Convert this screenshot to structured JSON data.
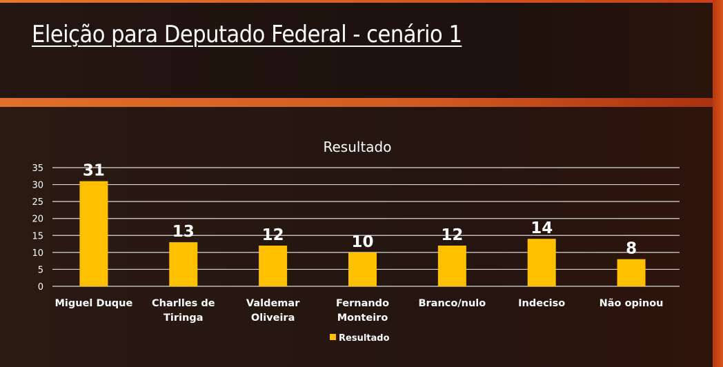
{
  "slide": {
    "title": "Eleição para Deputado Federal - cenário 1"
  },
  "colors": {
    "bar": "#ffc000",
    "grid": "#d9d9d9",
    "text": "#ffffff"
  },
  "chart_data": {
    "type": "bar",
    "title": "Resultado",
    "categories": [
      "Miguel Duque",
      "Charlles de Tiringa",
      "Valdemar Oliveira",
      "Fernando Monteiro",
      "Branco/nulo",
      "Indeciso",
      "Não opinou"
    ],
    "category_lines": [
      [
        "Miguel Duque"
      ],
      [
        "Charlles de",
        "Tiringa"
      ],
      [
        "Valdemar",
        "Oliveira"
      ],
      [
        "Fernando",
        "Monteiro"
      ],
      [
        "Branco/nulo"
      ],
      [
        "Indeciso"
      ],
      [
        "Não opinou"
      ]
    ],
    "series": [
      {
        "name": "Resultado",
        "values": [
          31,
          13,
          12,
          10,
          12,
          14,
          8
        ]
      }
    ],
    "ylim": [
      0,
      35
    ],
    "yticks": [
      0,
      5,
      10,
      15,
      20,
      25,
      30,
      35
    ],
    "grid": true,
    "legend": "bottom",
    "data_labels": true
  }
}
